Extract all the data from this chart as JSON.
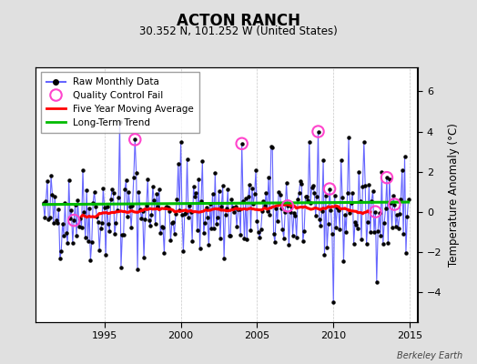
{
  "title": "ACTON RANCH",
  "subtitle": "30.352 N, 101.252 W (United States)",
  "ylabel": "Temperature Anomaly (°C)",
  "watermark": "Berkeley Earth",
  "ylim": [
    -5.5,
    7.2
  ],
  "yticks": [
    -4,
    -2,
    0,
    2,
    4,
    6
  ],
  "xlim": [
    1990.5,
    2015.5
  ],
  "xticks": [
    1995,
    2000,
    2005,
    2010,
    2015
  ],
  "bg_color": "#e0e0e0",
  "plot_bg_color": "#ffffff",
  "grid_color": "#b0b0b0",
  "raw_line_color": "#6666ff",
  "raw_dot_color": "#000000",
  "moving_avg_color": "#ff0000",
  "trend_color": "#00bb00",
  "qc_fail_color": "#ff44cc",
  "long_term_trend_value": 0.42,
  "seed": 42
}
